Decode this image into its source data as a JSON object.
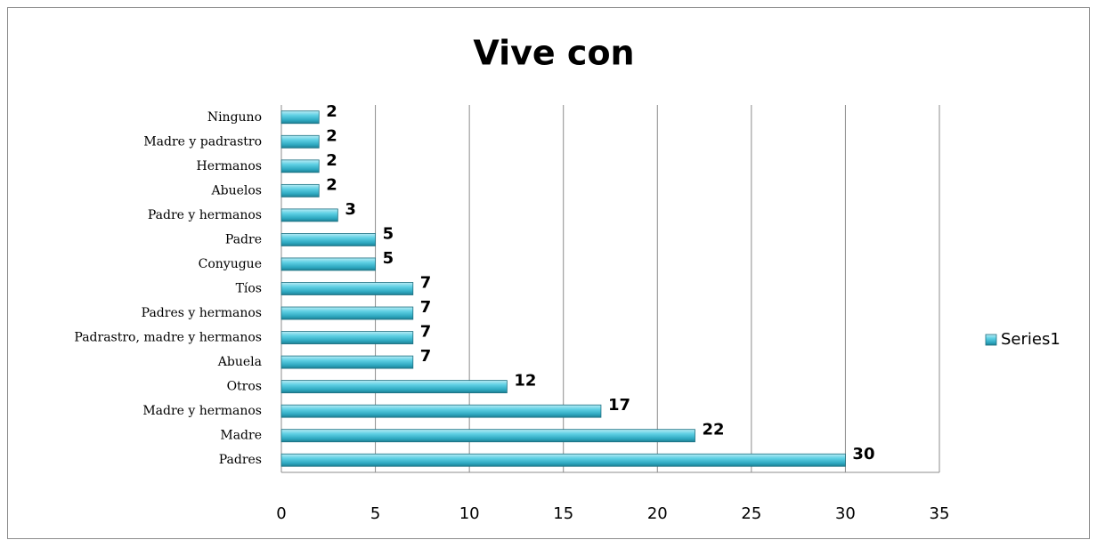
{
  "chart_data": {
    "type": "bar",
    "orientation": "horizontal",
    "title": "Vive con",
    "categories": [
      "Padres",
      "Madre",
      "Madre y hermanos",
      "Otros",
      "Abuela",
      "Padrastro, madre y hermanos",
      "Padres y hermanos",
      "Tíos",
      "Conyugue",
      "Padre",
      "Padre y hermanos",
      "Abuelos",
      "Hermanos",
      "Madre y padrastro",
      "Ninguno"
    ],
    "series": [
      {
        "name": "Series1",
        "color": "#4bc3d9",
        "values": [
          30,
          22,
          17,
          12,
          7,
          7,
          7,
          7,
          5,
          5,
          3,
          2,
          2,
          2,
          2
        ]
      }
    ],
    "xlim": [
      0,
      35
    ],
    "xticks": [
      0,
      5,
      10,
      15,
      20,
      25,
      30,
      35
    ],
    "grid": true,
    "legend": "right"
  }
}
